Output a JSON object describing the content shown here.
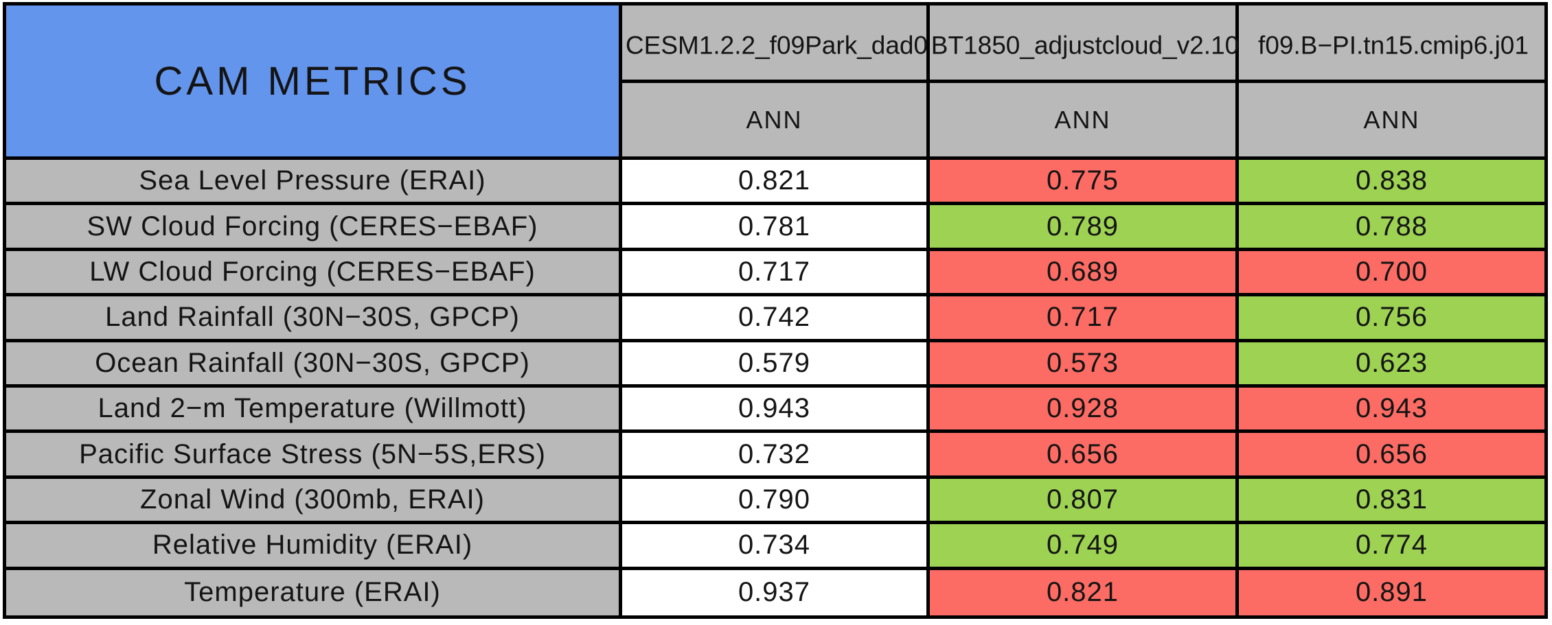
{
  "palette": {
    "blue": "#6495ED",
    "gray": "#B9B9B9",
    "white": "#FFFFFF",
    "red": "#FC6C64",
    "green": "#9DD253",
    "border": "#000000"
  },
  "header": {
    "corner_title": "CAM METRICS",
    "runs": [
      {
        "name": "CESM1.2.2_f09Park_dad0",
        "season": "ANN"
      },
      {
        "name": "BT1850_adjustcloud_v2.10",
        "season": "ANN"
      },
      {
        "name": "f09.B−PI.tn15.cmip6.j01",
        "season": "ANN"
      }
    ]
  },
  "rows": [
    {
      "label": "Sea Level Pressure (ERAI)",
      "values": [
        {
          "text": "0.821",
          "color": "white"
        },
        {
          "text": "0.775",
          "color": "red"
        },
        {
          "text": "0.838",
          "color": "green"
        }
      ]
    },
    {
      "label": "SW Cloud Forcing (CERES−EBAF)",
      "values": [
        {
          "text": "0.781",
          "color": "white"
        },
        {
          "text": "0.789",
          "color": "green"
        },
        {
          "text": "0.788",
          "color": "green"
        }
      ]
    },
    {
      "label": "LW Cloud Forcing (CERES−EBAF)",
      "values": [
        {
          "text": "0.717",
          "color": "white"
        },
        {
          "text": "0.689",
          "color": "red"
        },
        {
          "text": "0.700",
          "color": "red"
        }
      ]
    },
    {
      "label": "Land Rainfall (30N−30S, GPCP)",
      "values": [
        {
          "text": "0.742",
          "color": "white"
        },
        {
          "text": "0.717",
          "color": "red"
        },
        {
          "text": "0.756",
          "color": "green"
        }
      ]
    },
    {
      "label": "Ocean Rainfall (30N−30S, GPCP)",
      "values": [
        {
          "text": "0.579",
          "color": "white"
        },
        {
          "text": "0.573",
          "color": "red"
        },
        {
          "text": "0.623",
          "color": "green"
        }
      ]
    },
    {
      "label": "Land 2−m Temperature (Willmott)",
      "values": [
        {
          "text": "0.943",
          "color": "white"
        },
        {
          "text": "0.928",
          "color": "red"
        },
        {
          "text": "0.943",
          "color": "red"
        }
      ]
    },
    {
      "label": "Pacific Surface Stress (5N−5S,ERS)",
      "values": [
        {
          "text": "0.732",
          "color": "white"
        },
        {
          "text": "0.656",
          "color": "red"
        },
        {
          "text": "0.656",
          "color": "red"
        }
      ]
    },
    {
      "label": "Zonal Wind (300mb, ERAI)",
      "values": [
        {
          "text": "0.790",
          "color": "white"
        },
        {
          "text": "0.807",
          "color": "green"
        },
        {
          "text": "0.831",
          "color": "green"
        }
      ]
    },
    {
      "label": "Relative Humidity (ERAI)",
      "values": [
        {
          "text": "0.734",
          "color": "white"
        },
        {
          "text": "0.749",
          "color": "green"
        },
        {
          "text": "0.774",
          "color": "green"
        }
      ]
    },
    {
      "label": "Temperature (ERAI)",
      "values": [
        {
          "text": "0.937",
          "color": "white"
        },
        {
          "text": "0.821",
          "color": "red"
        },
        {
          "text": "0.891",
          "color": "red"
        }
      ]
    }
  ],
  "chart_data": {
    "type": "table",
    "title": "CAM METRICS",
    "columns": [
      "CESM1.2.2_f09Park_dad0",
      "BT1850_adjustcloud_v2.10",
      "f09.B−PI.tn15.cmip6.j01"
    ],
    "season_row": [
      "ANN",
      "ANN",
      "ANN"
    ],
    "row_labels": [
      "Sea Level Pressure (ERAI)",
      "SW Cloud Forcing (CERES−EBAF)",
      "LW Cloud Forcing (CERES−EBAF)",
      "Land Rainfall (30N−30S, GPCP)",
      "Ocean Rainfall (30N−30S, GPCP)",
      "Land 2−m Temperature (Willmott)",
      "Pacific Surface Stress (5N−5S,ERS)",
      "Zonal Wind (300mb, ERAI)",
      "Relative Humidity (ERAI)",
      "Temperature (ERAI)"
    ],
    "values": [
      [
        0.821,
        0.775,
        0.838
      ],
      [
        0.781,
        0.789,
        0.788
      ],
      [
        0.717,
        0.689,
        0.7
      ],
      [
        0.742,
        0.717,
        0.756
      ],
      [
        0.579,
        0.573,
        0.623
      ],
      [
        0.943,
        0.928,
        0.943
      ],
      [
        0.732,
        0.656,
        0.656
      ],
      [
        0.79,
        0.807,
        0.831
      ],
      [
        0.734,
        0.749,
        0.774
      ],
      [
        0.937,
        0.821,
        0.891
      ]
    ],
    "cell_colors": [
      [
        "white",
        "red",
        "green"
      ],
      [
        "white",
        "green",
        "green"
      ],
      [
        "white",
        "red",
        "red"
      ],
      [
        "white",
        "red",
        "green"
      ],
      [
        "white",
        "red",
        "green"
      ],
      [
        "white",
        "red",
        "red"
      ],
      [
        "white",
        "red",
        "red"
      ],
      [
        "white",
        "green",
        "green"
      ],
      [
        "white",
        "green",
        "green"
      ],
      [
        "white",
        "red",
        "red"
      ]
    ],
    "legend_position": "none",
    "grid": true
  }
}
